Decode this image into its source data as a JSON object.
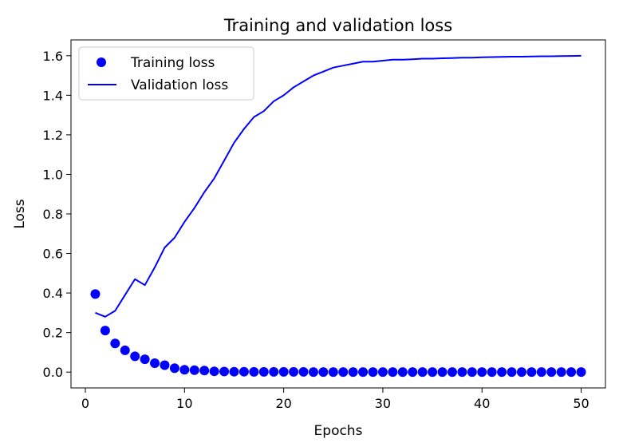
{
  "chart_data": {
    "type": "line",
    "title": "Training and validation loss",
    "xlabel": "Epochs",
    "ylabel": "Loss",
    "xlim": [
      -1.45,
      52.45
    ],
    "ylim": [
      -0.08,
      1.68
    ],
    "xticks": [
      0,
      10,
      20,
      30,
      40,
      50
    ],
    "xtick_labels": [
      "0",
      "10",
      "20",
      "30",
      "40",
      "50"
    ],
    "yticks": [
      0.0,
      0.2,
      0.4,
      0.6,
      0.8,
      1.0,
      1.2,
      1.4,
      1.6
    ],
    "ytick_labels": [
      "0.0",
      "0.2",
      "0.4",
      "0.6",
      "0.8",
      "1.0",
      "1.2",
      "1.4",
      "1.6"
    ],
    "grid": false,
    "legend_position": "top-left",
    "series": [
      {
        "name": "Training loss",
        "style": "scatter",
        "color": "#0000ff",
        "x": [
          1,
          2,
          3,
          4,
          5,
          6,
          7,
          8,
          9,
          10,
          11,
          12,
          13,
          14,
          15,
          16,
          17,
          18,
          19,
          20,
          21,
          22,
          23,
          24,
          25,
          26,
          27,
          28,
          29,
          30,
          31,
          32,
          33,
          34,
          35,
          36,
          37,
          38,
          39,
          40,
          41,
          42,
          43,
          44,
          45,
          46,
          47,
          48,
          49,
          50
        ],
        "values": [
          0.395,
          0.21,
          0.145,
          0.11,
          0.08,
          0.065,
          0.045,
          0.035,
          0.02,
          0.012,
          0.01,
          0.008,
          0.004,
          0.003,
          0.002,
          0.002,
          0.001,
          0.001,
          0.001,
          0.001,
          0.001,
          0.001,
          0.0,
          0.0,
          0.0,
          0.0,
          0.0,
          0.0,
          0.0,
          0.0,
          0.0,
          0.0,
          0.0,
          0.0,
          0.0,
          0.0,
          0.0,
          0.0,
          0.0,
          0.0,
          0.0,
          0.0,
          0.0,
          0.0,
          0.0,
          0.0,
          0.0,
          0.0,
          0.0,
          0.0
        ]
      },
      {
        "name": "Validation loss",
        "style": "line",
        "color": "#0000ff",
        "x": [
          1,
          2,
          3,
          4,
          5,
          6,
          7,
          8,
          9,
          10,
          11,
          12,
          13,
          14,
          15,
          16,
          17,
          18,
          19,
          20,
          21,
          22,
          23,
          24,
          25,
          26,
          27,
          28,
          29,
          30,
          31,
          32,
          33,
          34,
          35,
          36,
          37,
          38,
          39,
          40,
          41,
          42,
          43,
          44,
          45,
          46,
          47,
          48,
          49,
          50
        ],
        "values": [
          0.3,
          0.28,
          0.31,
          0.39,
          0.47,
          0.44,
          0.53,
          0.63,
          0.68,
          0.76,
          0.83,
          0.91,
          0.98,
          1.07,
          1.16,
          1.23,
          1.29,
          1.32,
          1.37,
          1.4,
          1.44,
          1.47,
          1.5,
          1.52,
          1.54,
          1.55,
          1.56,
          1.57,
          1.57,
          1.575,
          1.58,
          1.58,
          1.582,
          1.585,
          1.585,
          1.587,
          1.588,
          1.59,
          1.59,
          1.592,
          1.593,
          1.594,
          1.595,
          1.595,
          1.596,
          1.597,
          1.597,
          1.598,
          1.599,
          1.6
        ]
      }
    ]
  }
}
